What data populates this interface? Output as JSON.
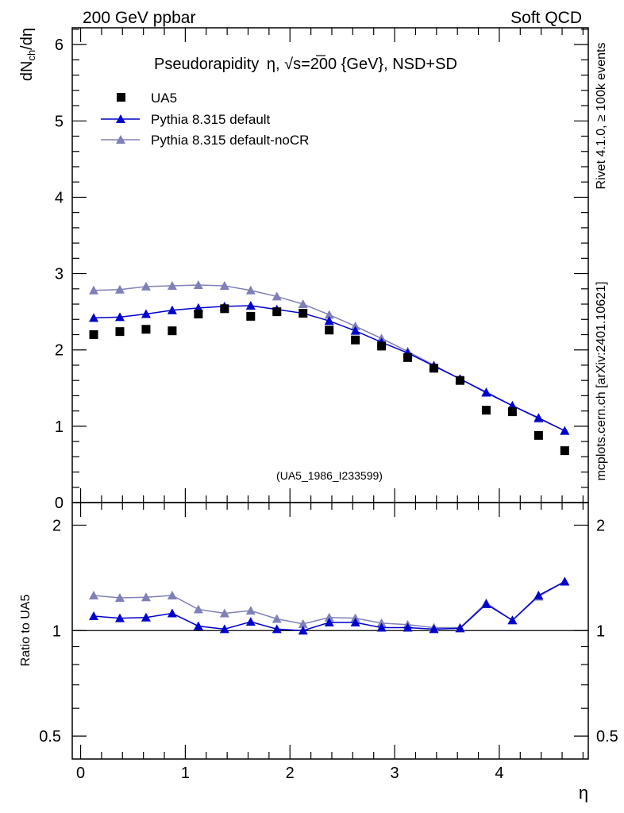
{
  "header": {
    "left": "200 GeV ppbar",
    "right": "Soft QCD"
  },
  "side_text": {
    "rivet": "Rivet 4.1.0, ≥ 100k events",
    "mcplots": "mcplots.cern.ch [arXiv:2401.10621]"
  },
  "colors": {
    "ua5": "#000000",
    "pythia_default": "#0000cc",
    "pythia_nocr": "#8080b8",
    "watermark": "#999999"
  },
  "chart_data": [
    {
      "type": "scatter",
      "panel": "main",
      "title": "Pseudorapidity η, √s=200 {GeV}, NSD+SD",
      "title_parts": {
        "prefix": "Pseudorapidity",
        "eta": "η",
        "sqrt_symbol": "√",
        "rest": "s=200 {GeV}, NSD+SD"
      },
      "ylabel": "dN_ch/dη",
      "ylabel_parts": {
        "main": "dN",
        "sub": "ch",
        "tail": "/dη"
      },
      "xlabel": "",
      "xlim": [
        -0.08,
        4.85
      ],
      "ylim": [
        0,
        6.22
      ],
      "y_ticks": [
        0,
        1,
        2,
        3,
        4,
        5,
        6
      ],
      "y_tick_labels": [
        "0",
        "1",
        "2",
        "3",
        "4",
        "5",
        "6"
      ],
      "watermark": "(UA5_1986_I233599)",
      "legend": {
        "placement": "top-left",
        "entries": [
          "UA5",
          "Pythia 8.315 default",
          "Pythia 8.315 default-noCR"
        ]
      },
      "x": [
        0.125,
        0.375,
        0.625,
        0.875,
        1.125,
        1.375,
        1.625,
        1.875,
        2.125,
        2.375,
        2.625,
        2.875,
        3.125,
        3.375,
        3.625,
        3.875,
        4.125,
        4.375,
        4.625
      ],
      "series": [
        {
          "name": "UA5",
          "marker": "square",
          "values": [
            2.2,
            2.24,
            2.27,
            2.25,
            2.47,
            2.54,
            2.44,
            2.5,
            2.48,
            2.26,
            2.13,
            2.05,
            1.9,
            1.76,
            1.6,
            1.21,
            1.19,
            0.88,
            0.68
          ]
        },
        {
          "name": "Pythia 8.315 default",
          "marker": "triangle",
          "values": [
            2.42,
            2.43,
            2.47,
            2.52,
            2.55,
            2.57,
            2.58,
            2.53,
            2.48,
            2.38,
            2.25,
            2.1,
            1.96,
            1.79,
            1.62,
            1.44,
            1.27,
            1.11,
            0.94
          ]
        },
        {
          "name": "Pythia 8.315 default-noCR",
          "marker": "triangle",
          "values": [
            2.78,
            2.79,
            2.83,
            2.84,
            2.85,
            2.84,
            2.78,
            2.7,
            2.6,
            2.46,
            2.31,
            2.15,
            1.98,
            1.8,
            1.62,
            1.45,
            1.27,
            1.1,
            0.94
          ]
        }
      ]
    },
    {
      "type": "line",
      "panel": "ratio",
      "ylabel": "Ratio to UA5",
      "xlabel": "η",
      "xlim": [
        -0.08,
        4.85
      ],
      "ylim": [
        0.43,
        2.32
      ],
      "y_scale": "log",
      "reference_line": 1,
      "y_ticks": [
        0.5,
        1,
        2
      ],
      "y_tick_labels": [
        "0.5",
        "1",
        "2"
      ],
      "x_ticks": [
        0,
        1,
        2,
        3,
        4
      ],
      "x_tick_labels": [
        "0",
        "1",
        "2",
        "3",
        "4"
      ],
      "x": [
        0.125,
        0.375,
        0.625,
        0.875,
        1.125,
        1.375,
        1.625,
        1.875,
        2.125,
        2.375,
        2.625,
        2.875,
        3.125,
        3.375,
        3.625,
        3.875,
        4.125,
        4.375,
        4.625
      ],
      "series": [
        {
          "name": "Pythia 8.315 default",
          "values": [
            1.1,
            1.085,
            1.09,
            1.12,
            1.03,
            1.01,
            1.06,
            1.01,
            1.0,
            1.055,
            1.055,
            1.02,
            1.02,
            1.01,
            1.015,
            1.19,
            1.07,
            1.26,
            1.38
          ]
        },
        {
          "name": "Pythia 8.315 default-noCR",
          "values": [
            1.26,
            1.24,
            1.245,
            1.26,
            1.15,
            1.12,
            1.14,
            1.08,
            1.045,
            1.09,
            1.085,
            1.05,
            1.04,
            1.02,
            1.02,
            1.2,
            1.07,
            1.25,
            1.38
          ]
        }
      ]
    }
  ]
}
